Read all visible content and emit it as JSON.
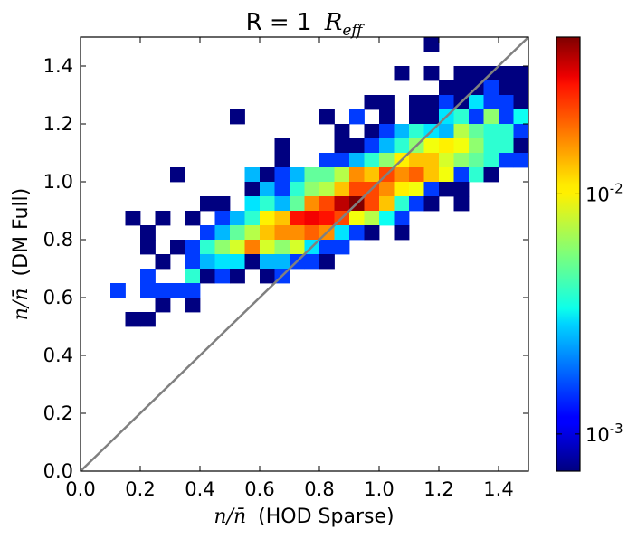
{
  "chart_data": {
    "type": "heatmap",
    "title": {
      "text": "R = 1",
      "math": "R",
      "sub": "eff"
    },
    "xlabel": {
      "math": "n/n̄",
      "text": "(HOD Sparse)"
    },
    "ylabel": {
      "math": "n/n̄",
      "text": "(DM Full)"
    },
    "xlim": [
      0.0,
      1.5
    ],
    "ylim": [
      0.0,
      1.5
    ],
    "bin_width": 0.05,
    "x_ticks": [
      "0.0",
      "0.2",
      "0.4",
      "0.6",
      "0.8",
      "1.0",
      "1.2",
      "1.4"
    ],
    "y_ticks": [
      "0.0",
      "0.2",
      "0.4",
      "0.6",
      "0.8",
      "1.0",
      "1.2",
      "1.4"
    ],
    "reference_line": {
      "from": [
        0.0,
        0.0
      ],
      "to": [
        1.5,
        1.5
      ],
      "color": "#808080"
    },
    "colorbar": {
      "scale": "log",
      "min": 0.0007,
      "max": 0.045,
      "ticks": [
        {
          "value": 0.001,
          "base": "10",
          "exp": "-3"
        },
        {
          "value": 0.01,
          "base": "10",
          "exp": "-2"
        }
      ],
      "colormap": "jet"
    },
    "cells": [
      [
        1.15,
        1.45,
        0.0007
      ],
      [
        1.05,
        1.35,
        0.0007
      ],
      [
        1.15,
        1.35,
        0.0007
      ],
      [
        1.25,
        1.35,
        0.0007
      ],
      [
        1.3,
        1.35,
        0.0007
      ],
      [
        1.35,
        1.35,
        0.0007
      ],
      [
        1.4,
        1.35,
        0.0007
      ],
      [
        1.45,
        1.35,
        0.0007
      ],
      [
        1.2,
        1.3,
        0.0007
      ],
      [
        1.25,
        1.3,
        0.0007
      ],
      [
        1.3,
        1.3,
        0.0007
      ],
      [
        1.35,
        1.3,
        0.0015
      ],
      [
        1.4,
        1.3,
        0.0007
      ],
      [
        1.45,
        1.3,
        0.0007
      ],
      [
        0.95,
        1.25,
        0.0007
      ],
      [
        1.0,
        1.25,
        0.0007
      ],
      [
        1.1,
        1.25,
        0.0007
      ],
      [
        1.15,
        1.25,
        0.0007
      ],
      [
        1.2,
        1.25,
        0.0015
      ],
      [
        1.25,
        1.25,
        0.0007
      ],
      [
        1.3,
        1.25,
        0.003
      ],
      [
        1.35,
        1.25,
        0.0015
      ],
      [
        1.4,
        1.25,
        0.0015
      ],
      [
        1.45,
        1.25,
        0.0007
      ],
      [
        0.5,
        1.2,
        0.0007
      ],
      [
        0.8,
        1.2,
        0.0007
      ],
      [
        0.9,
        1.2,
        0.0015
      ],
      [
        1.0,
        1.2,
        0.0007
      ],
      [
        1.1,
        1.2,
        0.0007
      ],
      [
        1.15,
        1.2,
        0.0007
      ],
      [
        1.2,
        1.2,
        0.003
      ],
      [
        1.25,
        1.2,
        0.004
      ],
      [
        1.3,
        1.2,
        0.0015
      ],
      [
        1.35,
        1.2,
        0.006
      ],
      [
        1.4,
        1.2,
        0.0015
      ],
      [
        1.45,
        1.2,
        0.0035
      ],
      [
        0.85,
        1.15,
        0.0007
      ],
      [
        0.95,
        1.15,
        0.0007
      ],
      [
        1.0,
        1.15,
        0.0015
      ],
      [
        1.05,
        1.15,
        0.0025
      ],
      [
        1.1,
        1.15,
        0.004
      ],
      [
        1.15,
        1.15,
        0.003
      ],
      [
        1.2,
        1.15,
        0.0025
      ],
      [
        1.25,
        1.15,
        0.007
      ],
      [
        1.3,
        1.15,
        0.005
      ],
      [
        1.35,
        1.15,
        0.004
      ],
      [
        1.4,
        1.15,
        0.004
      ],
      [
        1.45,
        1.15,
        0.0015
      ],
      [
        0.65,
        1.1,
        0.0007
      ],
      [
        0.85,
        1.1,
        0.0007
      ],
      [
        0.9,
        1.1,
        0.0007
      ],
      [
        0.95,
        1.1,
        0.0015
      ],
      [
        1.0,
        1.1,
        0.0025
      ],
      [
        1.05,
        1.1,
        0.004
      ],
      [
        1.1,
        1.1,
        0.006
      ],
      [
        1.15,
        1.1,
        0.009
      ],
      [
        1.2,
        1.1,
        0.01
      ],
      [
        1.25,
        1.1,
        0.009
      ],
      [
        1.3,
        1.1,
        0.006
      ],
      [
        1.35,
        1.1,
        0.004
      ],
      [
        1.4,
        1.1,
        0.004
      ],
      [
        1.45,
        1.1,
        0.0007
      ],
      [
        0.65,
        1.05,
        0.0007
      ],
      [
        0.8,
        1.05,
        0.0015
      ],
      [
        0.85,
        1.05,
        0.0015
      ],
      [
        0.9,
        1.05,
        0.0025
      ],
      [
        0.95,
        1.05,
        0.004
      ],
      [
        1.0,
        1.05,
        0.006
      ],
      [
        1.05,
        1.05,
        0.01
      ],
      [
        1.1,
        1.05,
        0.012
      ],
      [
        1.15,
        1.05,
        0.012
      ],
      [
        1.2,
        1.05,
        0.008
      ],
      [
        1.25,
        1.05,
        0.006
      ],
      [
        1.3,
        1.05,
        0.005
      ],
      [
        1.35,
        1.05,
        0.004
      ],
      [
        1.4,
        1.05,
        0.0015
      ],
      [
        1.45,
        1.05,
        0.0015
      ],
      [
        0.3,
        1.0,
        0.0007
      ],
      [
        0.55,
        1.0,
        0.0025
      ],
      [
        0.6,
        1.0,
        0.0007
      ],
      [
        0.65,
        1.0,
        0.0015
      ],
      [
        0.7,
        1.0,
        0.0025
      ],
      [
        0.75,
        1.0,
        0.005
      ],
      [
        0.8,
        1.0,
        0.005
      ],
      [
        0.85,
        1.0,
        0.007
      ],
      [
        0.9,
        1.0,
        0.015
      ],
      [
        0.95,
        1.0,
        0.012
      ],
      [
        1.0,
        1.0,
        0.02
      ],
      [
        1.05,
        1.0,
        0.015
      ],
      [
        1.1,
        1.0,
        0.018
      ],
      [
        1.15,
        1.0,
        0.012
      ],
      [
        1.2,
        1.0,
        0.009
      ],
      [
        1.25,
        1.0,
        0.0015
      ],
      [
        1.3,
        1.0,
        0.004
      ],
      [
        1.35,
        1.0,
        0.0007
      ],
      [
        0.55,
        0.95,
        0.0007
      ],
      [
        0.6,
        0.95,
        0.0025
      ],
      [
        0.65,
        0.95,
        0.0015
      ],
      [
        0.7,
        0.95,
        0.004
      ],
      [
        0.75,
        0.95,
        0.006
      ],
      [
        0.8,
        0.95,
        0.007
      ],
      [
        0.85,
        0.95,
        0.012
      ],
      [
        0.9,
        0.95,
        0.02
      ],
      [
        0.95,
        0.95,
        0.02
      ],
      [
        1.0,
        0.95,
        0.015
      ],
      [
        1.05,
        0.95,
        0.01
      ],
      [
        1.1,
        0.95,
        0.009
      ],
      [
        1.15,
        0.95,
        0.0015
      ],
      [
        1.2,
        0.95,
        0.0007
      ],
      [
        1.25,
        0.95,
        0.0007
      ],
      [
        0.4,
        0.9,
        0.0007
      ],
      [
        0.45,
        0.9,
        0.0007
      ],
      [
        0.55,
        0.9,
        0.003
      ],
      [
        0.6,
        0.9,
        0.004
      ],
      [
        0.65,
        0.9,
        0.0025
      ],
      [
        0.7,
        0.9,
        0.005
      ],
      [
        0.75,
        0.9,
        0.015
      ],
      [
        0.8,
        0.9,
        0.02
      ],
      [
        0.85,
        0.9,
        0.035
      ],
      [
        0.9,
        0.9,
        0.045
      ],
      [
        0.95,
        0.9,
        0.02
      ],
      [
        1.0,
        0.9,
        0.012
      ],
      [
        1.05,
        0.9,
        0.004
      ],
      [
        1.1,
        0.9,
        0.0015
      ],
      [
        1.15,
        0.9,
        0.0007
      ],
      [
        1.25,
        0.9,
        0.0007
      ],
      [
        0.15,
        0.85,
        0.0007
      ],
      [
        0.25,
        0.85,
        0.0007
      ],
      [
        0.35,
        0.85,
        0.0007
      ],
      [
        0.45,
        0.85,
        0.0015
      ],
      [
        0.5,
        0.85,
        0.0025
      ],
      [
        0.55,
        0.85,
        0.004
      ],
      [
        0.6,
        0.85,
        0.01
      ],
      [
        0.65,
        0.85,
        0.012
      ],
      [
        0.7,
        0.85,
        0.025
      ],
      [
        0.75,
        0.85,
        0.028
      ],
      [
        0.8,
        0.85,
        0.025
      ],
      [
        0.85,
        0.85,
        0.02
      ],
      [
        0.9,
        0.85,
        0.009
      ],
      [
        0.95,
        0.85,
        0.007
      ],
      [
        1.0,
        0.85,
        0.0035
      ],
      [
        1.05,
        0.85,
        0.0015
      ],
      [
        0.2,
        0.8,
        0.0007
      ],
      [
        0.4,
        0.8,
        0.0015
      ],
      [
        0.45,
        0.8,
        0.0025
      ],
      [
        0.5,
        0.8,
        0.005
      ],
      [
        0.55,
        0.8,
        0.007
      ],
      [
        0.6,
        0.8,
        0.012
      ],
      [
        0.65,
        0.8,
        0.015
      ],
      [
        0.7,
        0.8,
        0.015
      ],
      [
        0.75,
        0.8,
        0.018
      ],
      [
        0.8,
        0.8,
        0.015
      ],
      [
        0.85,
        0.8,
        0.003
      ],
      [
        0.9,
        0.8,
        0.0015
      ],
      [
        0.95,
        0.8,
        0.0007
      ],
      [
        1.05,
        0.8,
        0.0007
      ],
      [
        0.2,
        0.75,
        0.0007
      ],
      [
        0.3,
        0.75,
        0.0007
      ],
      [
        0.35,
        0.75,
        0.0015
      ],
      [
        0.4,
        0.75,
        0.004
      ],
      [
        0.45,
        0.75,
        0.006
      ],
      [
        0.5,
        0.75,
        0.008
      ],
      [
        0.55,
        0.75,
        0.016
      ],
      [
        0.6,
        0.75,
        0.008
      ],
      [
        0.65,
        0.75,
        0.006
      ],
      [
        0.7,
        0.75,
        0.008
      ],
      [
        0.75,
        0.75,
        0.003
      ],
      [
        0.8,
        0.75,
        0.0015
      ],
      [
        0.85,
        0.75,
        0.0015
      ],
      [
        0.25,
        0.7,
        0.0007
      ],
      [
        0.35,
        0.7,
        0.0015
      ],
      [
        0.4,
        0.7,
        0.0025
      ],
      [
        0.45,
        0.7,
        0.003
      ],
      [
        0.5,
        0.7,
        0.003
      ],
      [
        0.55,
        0.7,
        0.0007
      ],
      [
        0.6,
        0.7,
        0.0025
      ],
      [
        0.65,
        0.7,
        0.0025
      ],
      [
        0.7,
        0.7,
        0.0015
      ],
      [
        0.75,
        0.7,
        0.0015
      ],
      [
        0.8,
        0.7,
        0.0007
      ],
      [
        0.2,
        0.65,
        0.0015
      ],
      [
        0.35,
        0.65,
        0.004
      ],
      [
        0.4,
        0.65,
        0.0007
      ],
      [
        0.45,
        0.65,
        0.0015
      ],
      [
        0.5,
        0.65,
        0.0007
      ],
      [
        0.6,
        0.65,
        0.0007
      ],
      [
        0.65,
        0.65,
        0.0015
      ],
      [
        0.1,
        0.6,
        0.0015
      ],
      [
        0.2,
        0.6,
        0.0015
      ],
      [
        0.25,
        0.6,
        0.0015
      ],
      [
        0.3,
        0.6,
        0.0015
      ],
      [
        0.35,
        0.6,
        0.0015
      ],
      [
        0.25,
        0.55,
        0.0007
      ],
      [
        0.35,
        0.55,
        0.0007
      ],
      [
        0.15,
        0.5,
        0.0007
      ],
      [
        0.2,
        0.5,
        0.0007
      ]
    ]
  }
}
